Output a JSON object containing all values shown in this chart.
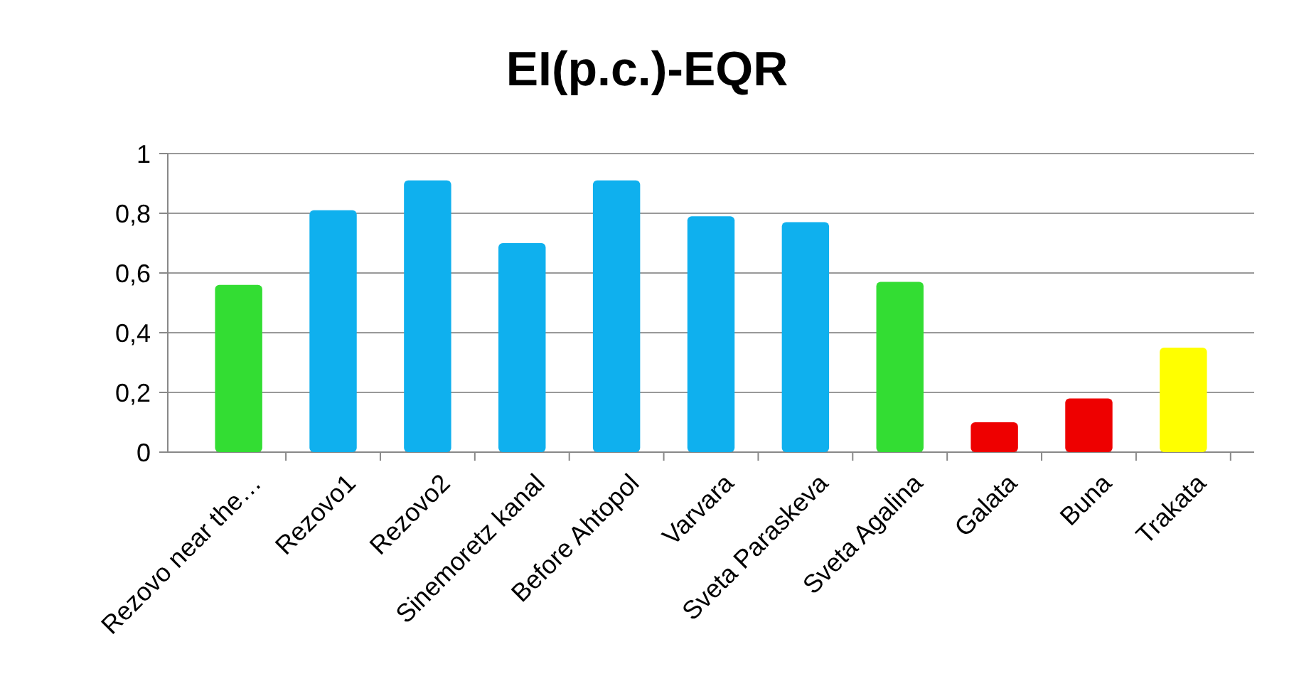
{
  "chart_data": {
    "type": "bar",
    "title": "EI(p.c.)-EQR",
    "categories": [
      "Rezovo near the…",
      "Rezovo1",
      "Rezovo2",
      "Sinemoretz kanal",
      "Before Ahtopol",
      "Varvara",
      "Sveta Paraskeva",
      "Sveta Agalina",
      "Galata",
      "Buna",
      "Trakata"
    ],
    "values": [
      0.56,
      0.81,
      0.91,
      0.7,
      0.91,
      0.79,
      0.77,
      0.57,
      0.1,
      0.18,
      0.35
    ],
    "colors": [
      "#33dd33",
      "#0fb0ee",
      "#0fb0ee",
      "#0fb0ee",
      "#0fb0ee",
      "#0fb0ee",
      "#0fb0ee",
      "#33dd33",
      "#ee0000",
      "#ee0000",
      "#ffff00"
    ],
    "ylim": [
      0,
      1
    ],
    "yticks": [
      0,
      {
        "value": 0.2,
        "label": "0,2"
      },
      {
        "value": 0.4,
        "label": "0,4"
      },
      {
        "value": 0.6,
        "label": "0,6"
      },
      {
        "value": 0.8,
        "label": "0,8"
      },
      1
    ],
    "grid": true
  }
}
